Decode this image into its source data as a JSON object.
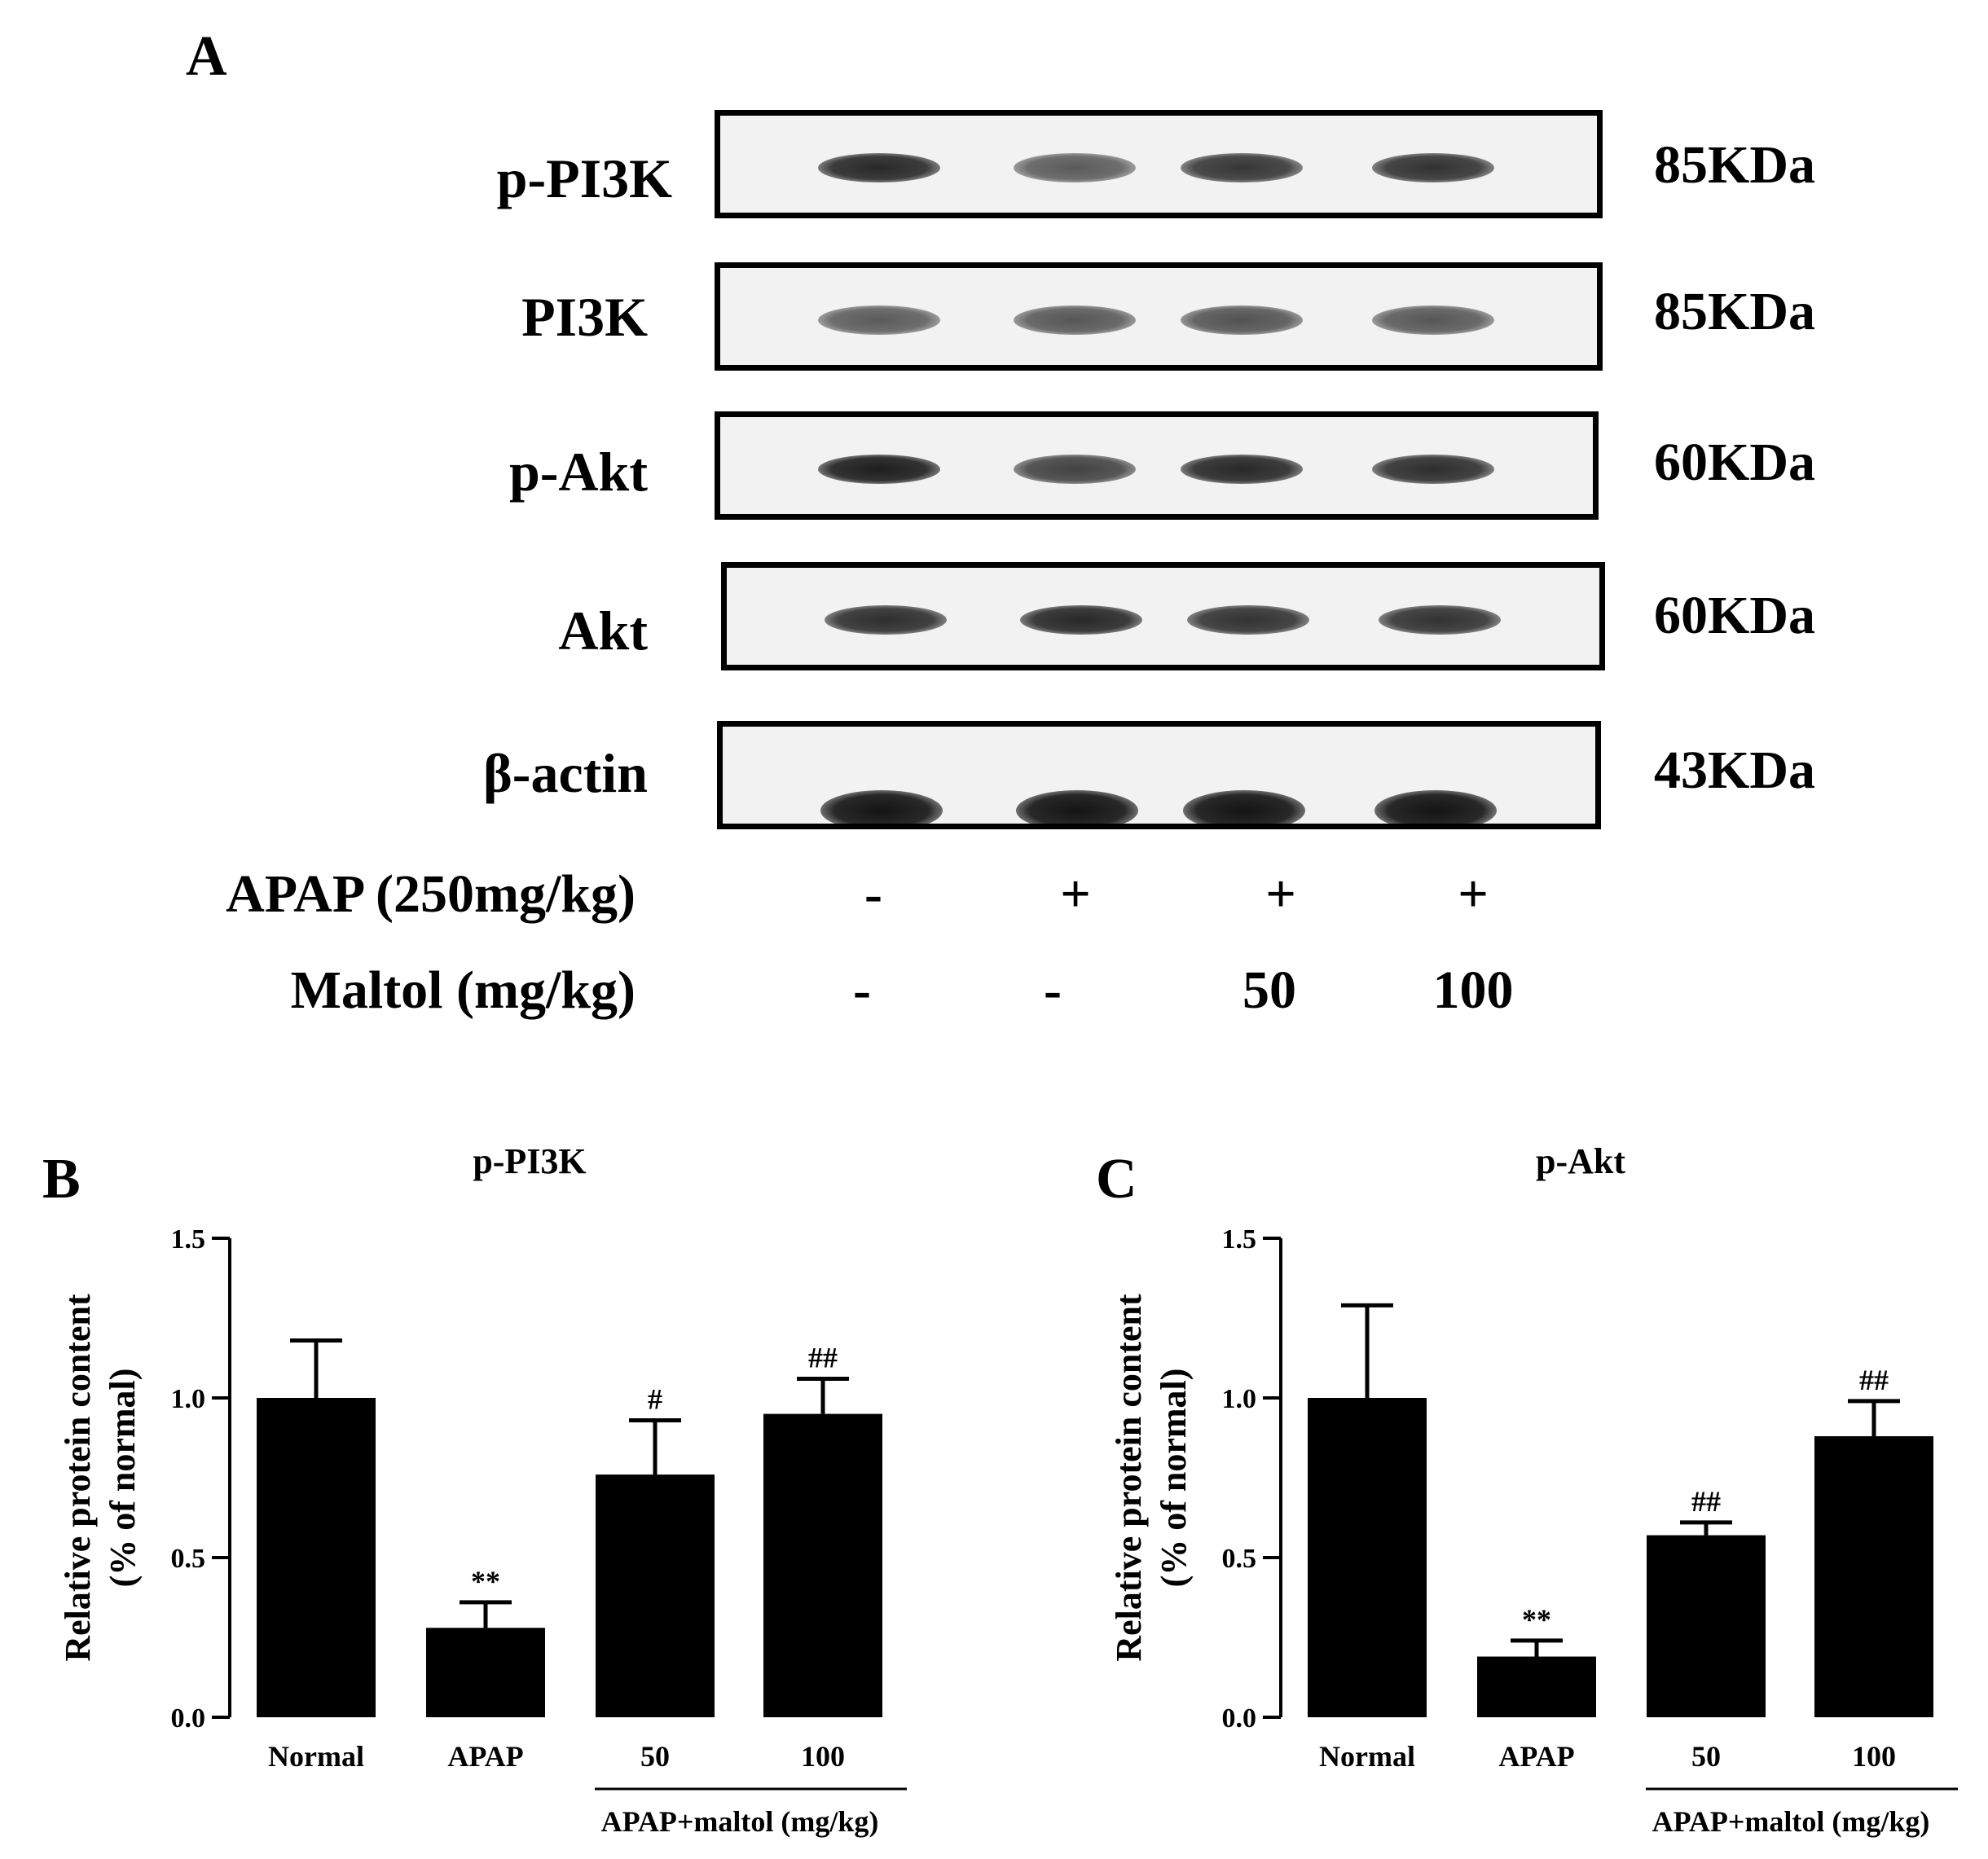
{
  "panel_a": {
    "letter": "A",
    "blots": [
      {
        "label": "p-PI3K",
        "kda": "85KDa",
        "intensity": [
          0.85,
          0.6,
          0.78,
          0.8
        ]
      },
      {
        "label": "PI3K",
        "kda": "85KDa",
        "intensity": [
          0.6,
          0.62,
          0.64,
          0.62
        ]
      },
      {
        "label": "p-Akt",
        "kda": "60KDa",
        "intensity": [
          0.9,
          0.72,
          0.85,
          0.82
        ]
      },
      {
        "label": "Akt",
        "kda": "60KDa",
        "intensity": [
          0.82,
          0.85,
          0.8,
          0.8
        ]
      },
      {
        "label": "β-actin",
        "kda": "43KDa",
        "intensity": [
          0.95,
          0.95,
          0.95,
          0.95
        ]
      }
    ],
    "treatments": [
      {
        "label": "APAP (250mg/kg)",
        "values": [
          "-",
          "+",
          "+",
          "+"
        ]
      },
      {
        "label": "Maltol (mg/kg)",
        "values": [
          "-",
          "-",
          "50",
          "100"
        ]
      }
    ]
  },
  "chart_data": [
    {
      "panel": "B",
      "type": "bar",
      "title": "p-PI3K",
      "ylabel": "Relative protein content",
      "ylabel2": "(% of normal)",
      "ylim": [
        0,
        1.5
      ],
      "yticks": [
        "0.0",
        "0.5",
        "1.0",
        "1.5"
      ],
      "categories": [
        "Normal",
        "APAP",
        "50",
        "100"
      ],
      "values": [
        1.0,
        0.28,
        0.76,
        0.95
      ],
      "errors": [
        0.18,
        0.08,
        0.17,
        0.11
      ],
      "annotations": [
        "",
        "**",
        "#",
        "##"
      ],
      "group_label": "APAP+maltol (mg/kg)"
    },
    {
      "panel": "C",
      "type": "bar",
      "title": "p-Akt",
      "ylabel": "Relative protein content",
      "ylabel2": "(% of normal)",
      "ylim": [
        0,
        1.5
      ],
      "yticks": [
        "0.0",
        "0.5",
        "1.0",
        "1.5"
      ],
      "categories": [
        "Normal",
        "APAP",
        "50",
        "100"
      ],
      "values": [
        1.0,
        0.19,
        0.57,
        0.88
      ],
      "errors": [
        0.29,
        0.05,
        0.04,
        0.11
      ],
      "annotations": [
        "",
        "**",
        "##",
        "##"
      ],
      "group_label": "APAP+maltol (mg/kg)"
    }
  ]
}
